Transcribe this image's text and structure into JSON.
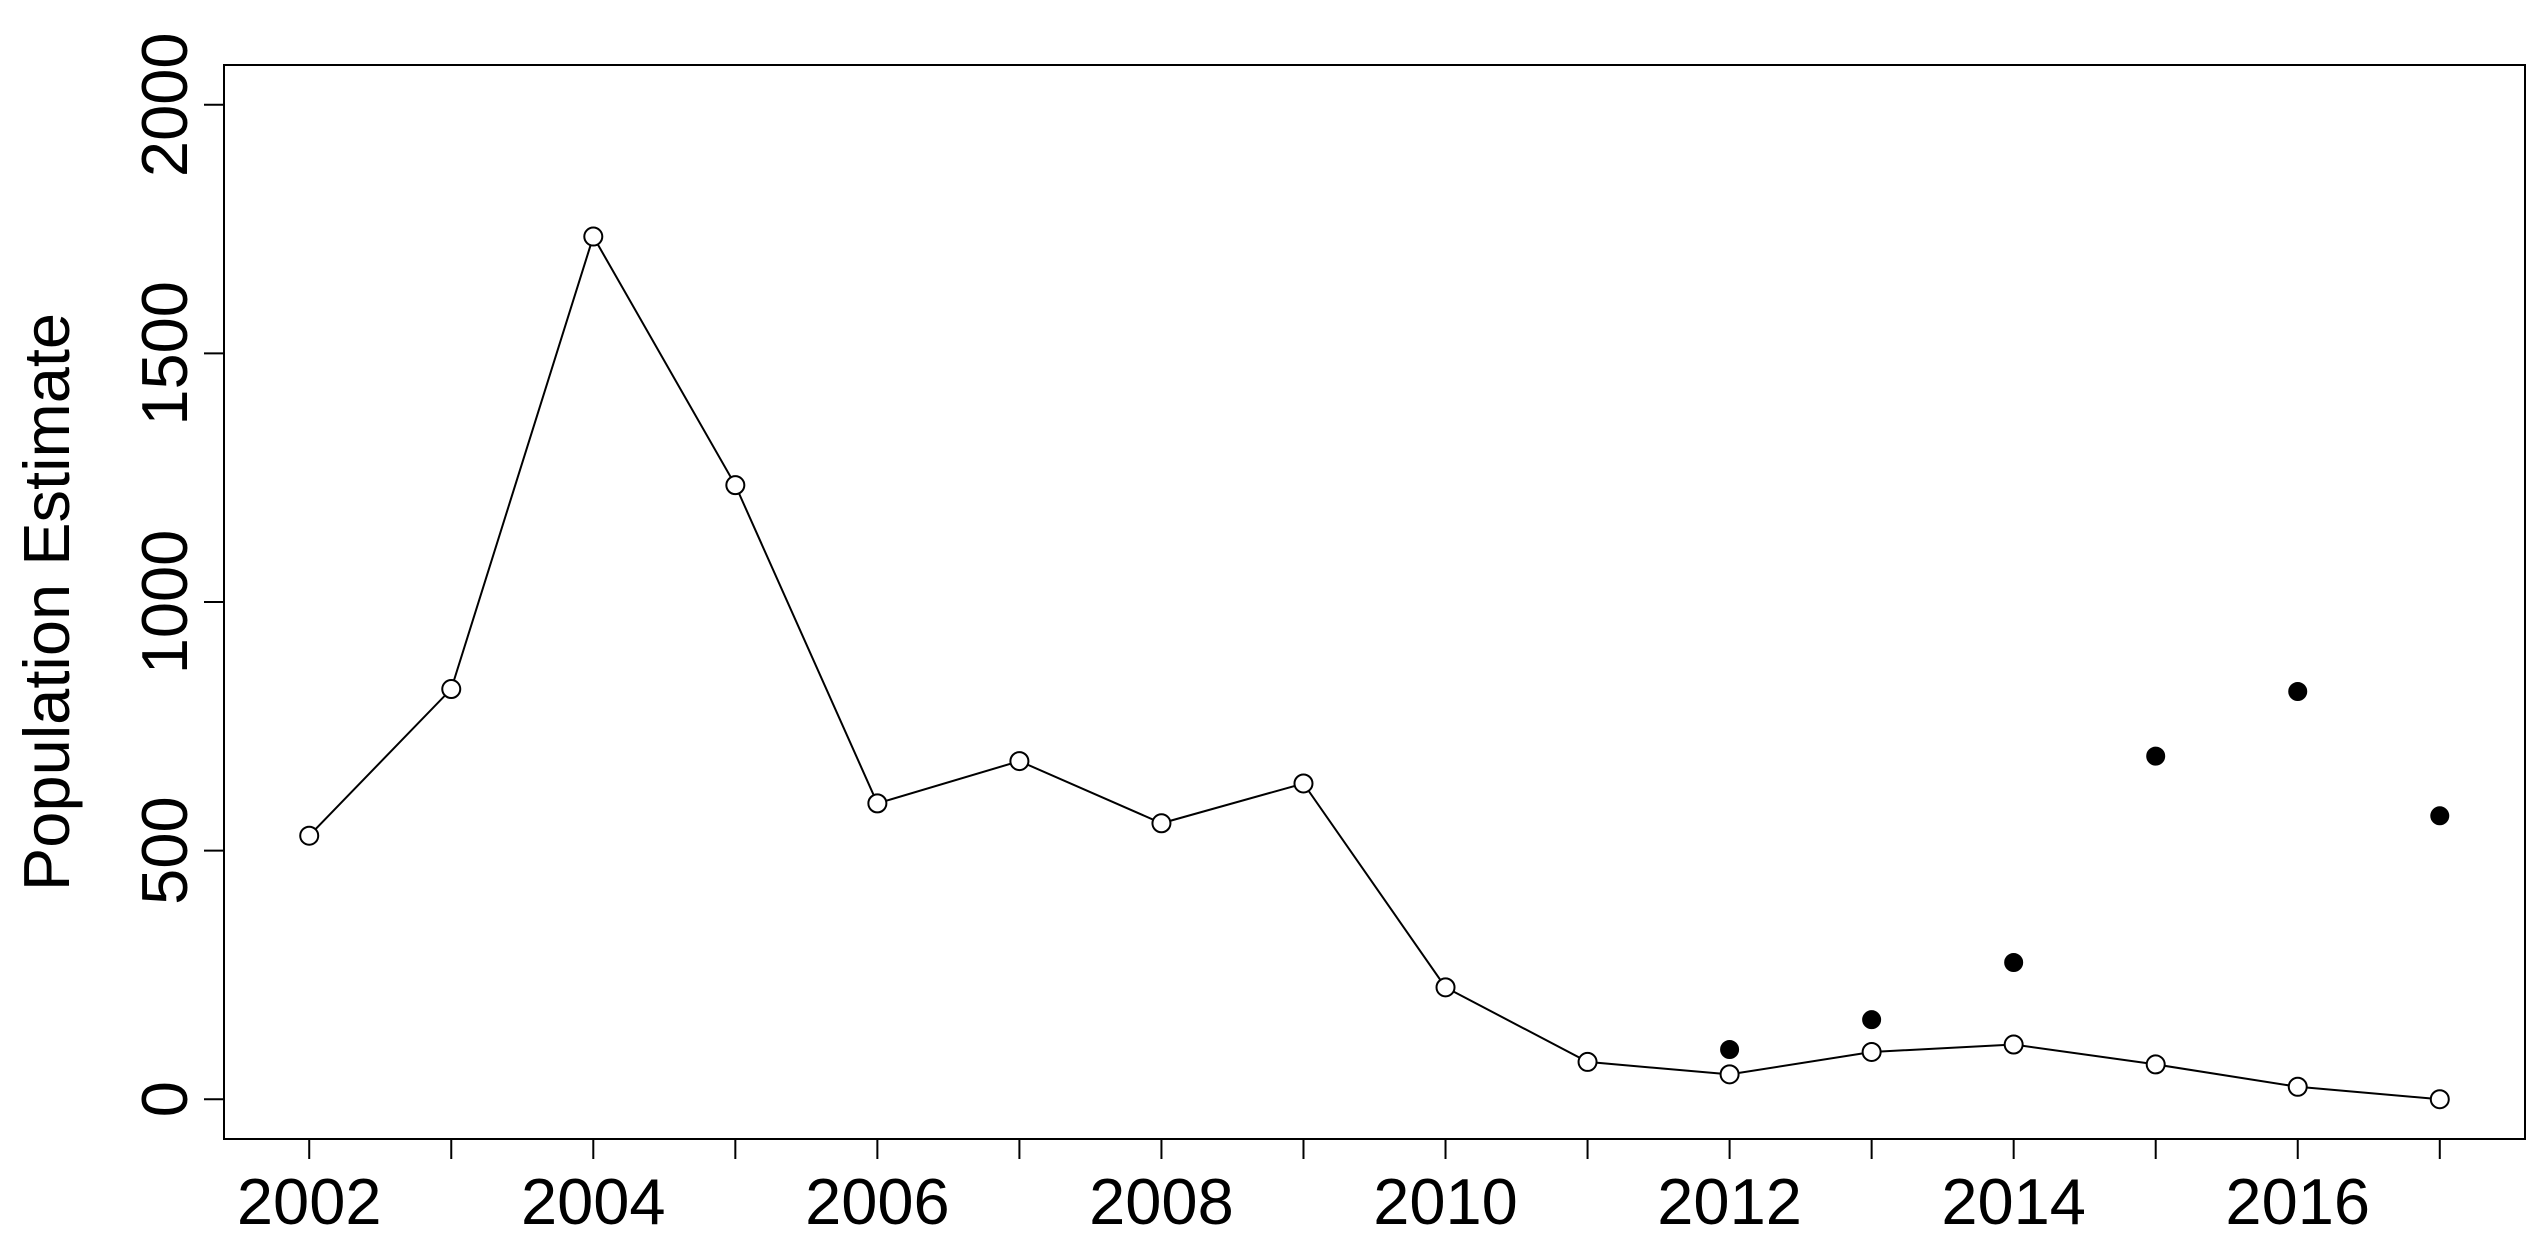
{
  "chart_data": {
    "type": "line",
    "y_label": "Population Estimate",
    "x": [
      2002,
      2003,
      2004,
      2005,
      2006,
      2007,
      2008,
      2009,
      2010,
      2011,
      2012,
      2013,
      2014,
      2015,
      2016,
      2017
    ],
    "series": [
      {
        "color": "#000000",
        "marker": "open",
        "line": true,
        "values": [
          530,
          825,
          1735,
          1235,
          595,
          680,
          555,
          635,
          225,
          75,
          50,
          95,
          110,
          70,
          25,
          0
        ]
      },
      {
        "color": "#000000",
        "marker": "filled",
        "line": false,
        "values": [
          null,
          null,
          null,
          null,
          null,
          null,
          null,
          null,
          null,
          null,
          100,
          160,
          275,
          690,
          820,
          570
        ]
      }
    ],
    "xlim": [
      2001.4,
      2017.6
    ],
    "xticks": [
      2002,
      2004,
      2006,
      2008,
      2010,
      2012,
      2014,
      2016
    ],
    "xminor_ticks": [
      2003,
      2005,
      2007,
      2009,
      2011,
      2013,
      2015,
      2017
    ],
    "ylim": [
      -80,
      2080
    ],
    "yticks": [
      0,
      500,
      1000,
      1500,
      2000
    ],
    "grid": false
  }
}
